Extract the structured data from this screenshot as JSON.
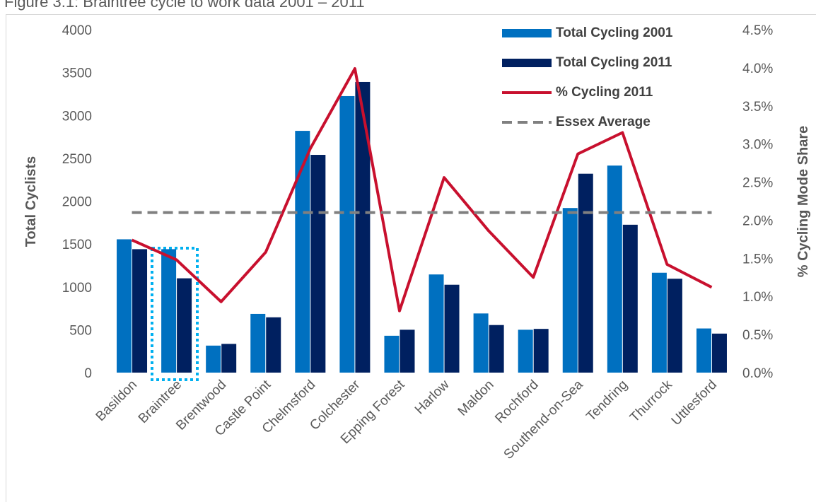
{
  "chart_data": {
    "type": "bar-line",
    "title": "Figure 3.1: Braintree cycle to work data 2001 – 2011",
    "y_label": "Total Cyclists",
    "y2_label": "% Cycling Mode Share",
    "categories": [
      "Basildon",
      "Braintree",
      "Brentwood",
      "Castle Point",
      "Chelmsford",
      "Colchester",
      "Epping Forest",
      "Harlow",
      "Maldon",
      "Rochford",
      "Southend-on-Sea",
      "Tendring",
      "Thurrock",
      "Uttlesford"
    ],
    "series": [
      {
        "name": "Total Cycling 2001",
        "type": "bar",
        "color": "#0070c0",
        "values": [
          1555,
          1440,
          315,
          685,
          2820,
          3225,
          430,
          1145,
          690,
          500,
          1920,
          2415,
          1165,
          515
        ]
      },
      {
        "name": "Total Cycling 2011",
        "type": "bar",
        "color": "#002060",
        "values": [
          1440,
          1100,
          335,
          645,
          2540,
          3390,
          500,
          1025,
          555,
          510,
          2320,
          1725,
          1095,
          455
        ]
      },
      {
        "name": "% Cycling 2011",
        "type": "line",
        "axis": "y2",
        "color": "#c8102e",
        "values": [
          1.74,
          1.48,
          0.93,
          1.58,
          2.94,
          3.99,
          0.81,
          2.56,
          1.86,
          1.25,
          2.87,
          3.15,
          1.42,
          1.12
        ]
      },
      {
        "name": "Essex Average",
        "type": "hline",
        "axis": "y2",
        "color": "#808080",
        "dashed": true,
        "value": 2.1
      }
    ],
    "ylim": [
      0,
      4000
    ],
    "yticks": [
      0,
      500,
      1000,
      1500,
      2000,
      2500,
      3000,
      3500,
      4000
    ],
    "y2lim": [
      0,
      4.5
    ],
    "y2ticks": [
      {
        "value": 0,
        "label": "0.0%"
      },
      {
        "value": 0.5,
        "label": "0.5%"
      },
      {
        "value": 1,
        "label": "1.0%"
      },
      {
        "value": 1.5,
        "label": "1.5%"
      },
      {
        "value": 2,
        "label": "2.0%"
      },
      {
        "value": 2.5,
        "label": "2.5%"
      },
      {
        "value": 3,
        "label": "3.0%"
      },
      {
        "value": 3.5,
        "label": "3.5%"
      },
      {
        "value": 4,
        "label": "4.0%"
      },
      {
        "value": 4.5,
        "label": "4.5%"
      }
    ],
    "legend": "top-right"
  }
}
